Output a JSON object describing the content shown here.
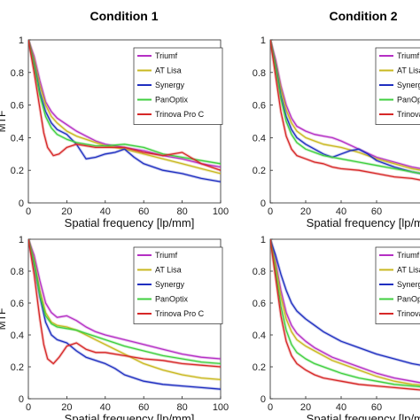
{
  "titles": [
    "Condition 1",
    "Condition 2"
  ],
  "chart_data": [
    {
      "type": "line",
      "panel": "top-left",
      "condition": "Condition 1",
      "xlabel": "Spatial frequency [lp/mm]",
      "ylabel": "MTF",
      "xlim": [
        0,
        100
      ],
      "ylim": [
        0,
        1
      ],
      "xticks": [
        0,
        20,
        40,
        60,
        80,
        100
      ],
      "yticks": [
        0,
        0.2,
        0.4,
        0.6,
        0.8,
        1
      ],
      "legend": "top-right",
      "series": [
        {
          "name": "Triumf",
          "color": "#b52fc4",
          "x": [
            0,
            3,
            6,
            9,
            12,
            15,
            20,
            25,
            30,
            35,
            40,
            50,
            60,
            70,
            80,
            90,
            100
          ],
          "y": [
            1,
            0.9,
            0.75,
            0.62,
            0.56,
            0.52,
            0.48,
            0.44,
            0.41,
            0.38,
            0.36,
            0.34,
            0.32,
            0.29,
            0.27,
            0.24,
            0.22
          ]
        },
        {
          "name": "AT Lisa",
          "color": "#c9b820",
          "x": [
            0,
            3,
            6,
            9,
            12,
            15,
            20,
            25,
            30,
            35,
            40,
            50,
            60,
            70,
            80,
            90,
            100
          ],
          "y": [
            1,
            0.88,
            0.72,
            0.6,
            0.53,
            0.49,
            0.44,
            0.41,
            0.39,
            0.37,
            0.35,
            0.33,
            0.3,
            0.27,
            0.24,
            0.21,
            0.18
          ]
        },
        {
          "name": "Synergy",
          "color": "#1f2fc0",
          "x": [
            0,
            3,
            6,
            9,
            12,
            15,
            20,
            25,
            30,
            35,
            40,
            45,
            50,
            55,
            60,
            70,
            80,
            90,
            100
          ],
          "y": [
            1,
            0.85,
            0.68,
            0.56,
            0.49,
            0.45,
            0.42,
            0.36,
            0.27,
            0.28,
            0.3,
            0.31,
            0.33,
            0.28,
            0.24,
            0.2,
            0.18,
            0.15,
            0.13
          ]
        },
        {
          "name": "PanOptix",
          "color": "#3fcf3f",
          "x": [
            0,
            3,
            6,
            9,
            12,
            15,
            20,
            25,
            30,
            35,
            40,
            50,
            60,
            70,
            80,
            90,
            100
          ],
          "y": [
            1,
            0.84,
            0.66,
            0.53,
            0.46,
            0.42,
            0.39,
            0.37,
            0.36,
            0.35,
            0.35,
            0.36,
            0.34,
            0.3,
            0.28,
            0.26,
            0.24
          ]
        },
        {
          "name": "Trinova Pro C",
          "color": "#d62828",
          "x": [
            0,
            3,
            6,
            8,
            10,
            13,
            16,
            20,
            25,
            30,
            35,
            40,
            50,
            60,
            70,
            80,
            90,
            100
          ],
          "y": [
            1,
            0.8,
            0.58,
            0.43,
            0.34,
            0.29,
            0.3,
            0.34,
            0.36,
            0.35,
            0.34,
            0.34,
            0.34,
            0.31,
            0.29,
            0.31,
            0.24,
            0.2
          ]
        }
      ]
    },
    {
      "type": "line",
      "panel": "top-right",
      "condition": "Condition 2",
      "xlabel": "Spatial frequency [lp/mm]",
      "ylabel": "",
      "xlim": [
        0,
        100
      ],
      "ylim": [
        0,
        1
      ],
      "xticks": [
        0,
        20,
        40,
        60
      ],
      "yticks": [
        0,
        0.2,
        0.4,
        0.6,
        0.8,
        1
      ],
      "legend": "top-right",
      "series": [
        {
          "name": "Triumf",
          "color": "#b52fc4",
          "x": [
            0,
            3,
            6,
            9,
            12,
            15,
            20,
            25,
            30,
            35,
            40,
            50,
            60,
            70,
            80,
            90,
            100
          ],
          "y": [
            1,
            0.88,
            0.72,
            0.6,
            0.52,
            0.47,
            0.44,
            0.42,
            0.41,
            0.4,
            0.38,
            0.33,
            0.28,
            0.25,
            0.22,
            0.2,
            0.18
          ]
        },
        {
          "name": "AT Lisa",
          "color": "#c9b820",
          "x": [
            0,
            3,
            6,
            9,
            12,
            15,
            20,
            25,
            30,
            35,
            40,
            50,
            60,
            70,
            80,
            90,
            100
          ],
          "y": [
            1,
            0.86,
            0.7,
            0.57,
            0.49,
            0.44,
            0.4,
            0.38,
            0.36,
            0.35,
            0.34,
            0.31,
            0.27,
            0.24,
            0.21,
            0.19,
            0.17
          ]
        },
        {
          "name": "Synergy",
          "color": "#1f2fc0",
          "x": [
            0,
            3,
            6,
            9,
            12,
            15,
            20,
            25,
            30,
            35,
            40,
            45,
            50,
            55,
            60,
            70,
            80,
            90,
            100
          ],
          "y": [
            1,
            0.84,
            0.66,
            0.53,
            0.45,
            0.4,
            0.36,
            0.33,
            0.3,
            0.28,
            0.3,
            0.32,
            0.33,
            0.3,
            0.26,
            0.22,
            0.19,
            0.17,
            0.15
          ]
        },
        {
          "name": "PanOptix",
          "color": "#3fcf3f",
          "x": [
            0,
            3,
            6,
            9,
            12,
            15,
            20,
            25,
            30,
            35,
            40,
            50,
            60,
            70,
            80,
            90,
            100
          ],
          "y": [
            1,
            0.83,
            0.64,
            0.5,
            0.42,
            0.37,
            0.33,
            0.31,
            0.29,
            0.28,
            0.27,
            0.25,
            0.23,
            0.21,
            0.19,
            0.17,
            0.15
          ]
        },
        {
          "name": "Trinova Pro C",
          "color": "#d62828",
          "x": [
            0,
            3,
            6,
            9,
            12,
            15,
            20,
            25,
            30,
            35,
            40,
            50,
            60,
            70,
            80,
            90,
            100
          ],
          "y": [
            1,
            0.78,
            0.56,
            0.41,
            0.33,
            0.29,
            0.27,
            0.25,
            0.24,
            0.22,
            0.21,
            0.2,
            0.18,
            0.16,
            0.15,
            0.13,
            0.12
          ]
        }
      ]
    },
    {
      "type": "line",
      "panel": "bottom-left",
      "condition": "Condition 1",
      "xlabel": "Spatial frequency [lp/mm]",
      "ylabel": "MTF",
      "xlim": [
        0,
        100
      ],
      "ylim": [
        0,
        1
      ],
      "xticks": [
        0,
        20,
        40,
        60,
        80,
        100
      ],
      "yticks": [
        0,
        0.2,
        0.4,
        0.6,
        0.8,
        1
      ],
      "legend": "top-right",
      "series": [
        {
          "name": "Triumf",
          "color": "#b52fc4",
          "x": [
            0,
            3,
            6,
            9,
            12,
            15,
            20,
            25,
            30,
            35,
            40,
            50,
            60,
            70,
            80,
            90,
            100
          ],
          "y": [
            1,
            0.9,
            0.74,
            0.6,
            0.54,
            0.51,
            0.52,
            0.49,
            0.45,
            0.42,
            0.4,
            0.37,
            0.34,
            0.31,
            0.28,
            0.26,
            0.25
          ]
        },
        {
          "name": "AT Lisa",
          "color": "#c9b820",
          "x": [
            0,
            3,
            6,
            9,
            12,
            15,
            20,
            25,
            30,
            35,
            40,
            50,
            60,
            70,
            80,
            90,
            100
          ],
          "y": [
            1,
            0.87,
            0.68,
            0.54,
            0.48,
            0.46,
            0.45,
            0.43,
            0.4,
            0.37,
            0.34,
            0.28,
            0.22,
            0.18,
            0.15,
            0.13,
            0.12
          ]
        },
        {
          "name": "Synergy",
          "color": "#1f2fc0",
          "x": [
            0,
            3,
            6,
            9,
            12,
            15,
            20,
            25,
            30,
            35,
            40,
            45,
            50,
            60,
            70,
            80,
            90,
            100
          ],
          "y": [
            1,
            0.84,
            0.64,
            0.48,
            0.4,
            0.37,
            0.35,
            0.3,
            0.26,
            0.24,
            0.22,
            0.19,
            0.15,
            0.11,
            0.09,
            0.08,
            0.07,
            0.06
          ]
        },
        {
          "name": "PanOptix",
          "color": "#3fcf3f",
          "x": [
            0,
            3,
            6,
            9,
            12,
            15,
            20,
            25,
            30,
            35,
            40,
            50,
            60,
            70,
            80,
            90,
            100
          ],
          "y": [
            1,
            0.85,
            0.65,
            0.52,
            0.47,
            0.45,
            0.44,
            0.43,
            0.41,
            0.39,
            0.37,
            0.33,
            0.3,
            0.27,
            0.25,
            0.23,
            0.22
          ]
        },
        {
          "name": "Trinova Pro C",
          "color": "#d62828",
          "x": [
            0,
            3,
            6,
            8,
            10,
            13,
            16,
            20,
            25,
            30,
            35,
            40,
            50,
            60,
            70,
            80,
            90,
            100
          ],
          "y": [
            1,
            0.78,
            0.5,
            0.34,
            0.25,
            0.22,
            0.26,
            0.33,
            0.35,
            0.31,
            0.29,
            0.29,
            0.27,
            0.25,
            0.24,
            0.22,
            0.21,
            0.2
          ]
        }
      ]
    },
    {
      "type": "line",
      "panel": "bottom-right",
      "condition": "Condition 2",
      "xlabel": "Spatial frequency [lp/mm]",
      "ylabel": "",
      "xlim": [
        0,
        100
      ],
      "ylim": [
        0,
        1
      ],
      "xticks": [
        0,
        20,
        40,
        60
      ],
      "yticks": [
        0,
        0.2,
        0.4,
        0.6,
        0.8,
        1
      ],
      "legend": "top-right",
      "series": [
        {
          "name": "Triumf",
          "color": "#b52fc4",
          "x": [
            0,
            3,
            6,
            9,
            12,
            15,
            20,
            25,
            30,
            35,
            40,
            50,
            60,
            70,
            80,
            90,
            100
          ],
          "y": [
            1,
            0.86,
            0.68,
            0.54,
            0.46,
            0.41,
            0.36,
            0.32,
            0.29,
            0.26,
            0.24,
            0.2,
            0.16,
            0.13,
            0.11,
            0.09,
            0.08
          ]
        },
        {
          "name": "AT Lisa",
          "color": "#c9b820",
          "x": [
            0,
            3,
            6,
            9,
            12,
            15,
            20,
            25,
            30,
            35,
            40,
            50,
            60,
            70,
            80,
            90,
            100
          ],
          "y": [
            1,
            0.84,
            0.64,
            0.5,
            0.42,
            0.37,
            0.33,
            0.3,
            0.27,
            0.24,
            0.22,
            0.18,
            0.14,
            0.11,
            0.09,
            0.08,
            0.07
          ]
        },
        {
          "name": "Synergy",
          "color": "#1f2fc0",
          "x": [
            0,
            3,
            6,
            9,
            12,
            15,
            20,
            25,
            30,
            35,
            40,
            50,
            60,
            70,
            80,
            90,
            100
          ],
          "y": [
            1,
            0.9,
            0.78,
            0.68,
            0.6,
            0.55,
            0.5,
            0.46,
            0.42,
            0.39,
            0.36,
            0.32,
            0.28,
            0.25,
            0.22,
            0.2,
            0.18
          ]
        },
        {
          "name": "PanOptix",
          "color": "#3fcf3f",
          "x": [
            0,
            3,
            6,
            9,
            12,
            15,
            20,
            25,
            30,
            35,
            40,
            50,
            60,
            70,
            80,
            90,
            100
          ],
          "y": [
            1,
            0.8,
            0.58,
            0.43,
            0.34,
            0.29,
            0.25,
            0.22,
            0.2,
            0.18,
            0.16,
            0.13,
            0.11,
            0.09,
            0.08,
            0.07,
            0.06
          ]
        },
        {
          "name": "Trinova Pro C",
          "color": "#d62828",
          "x": [
            0,
            3,
            6,
            9,
            12,
            15,
            20,
            25,
            30,
            35,
            40,
            50,
            60,
            70,
            80,
            90,
            100
          ],
          "y": [
            1,
            0.76,
            0.52,
            0.36,
            0.27,
            0.22,
            0.18,
            0.15,
            0.13,
            0.12,
            0.11,
            0.09,
            0.08,
            0.07,
            0.06,
            0.05,
            0.05
          ]
        }
      ]
    }
  ]
}
